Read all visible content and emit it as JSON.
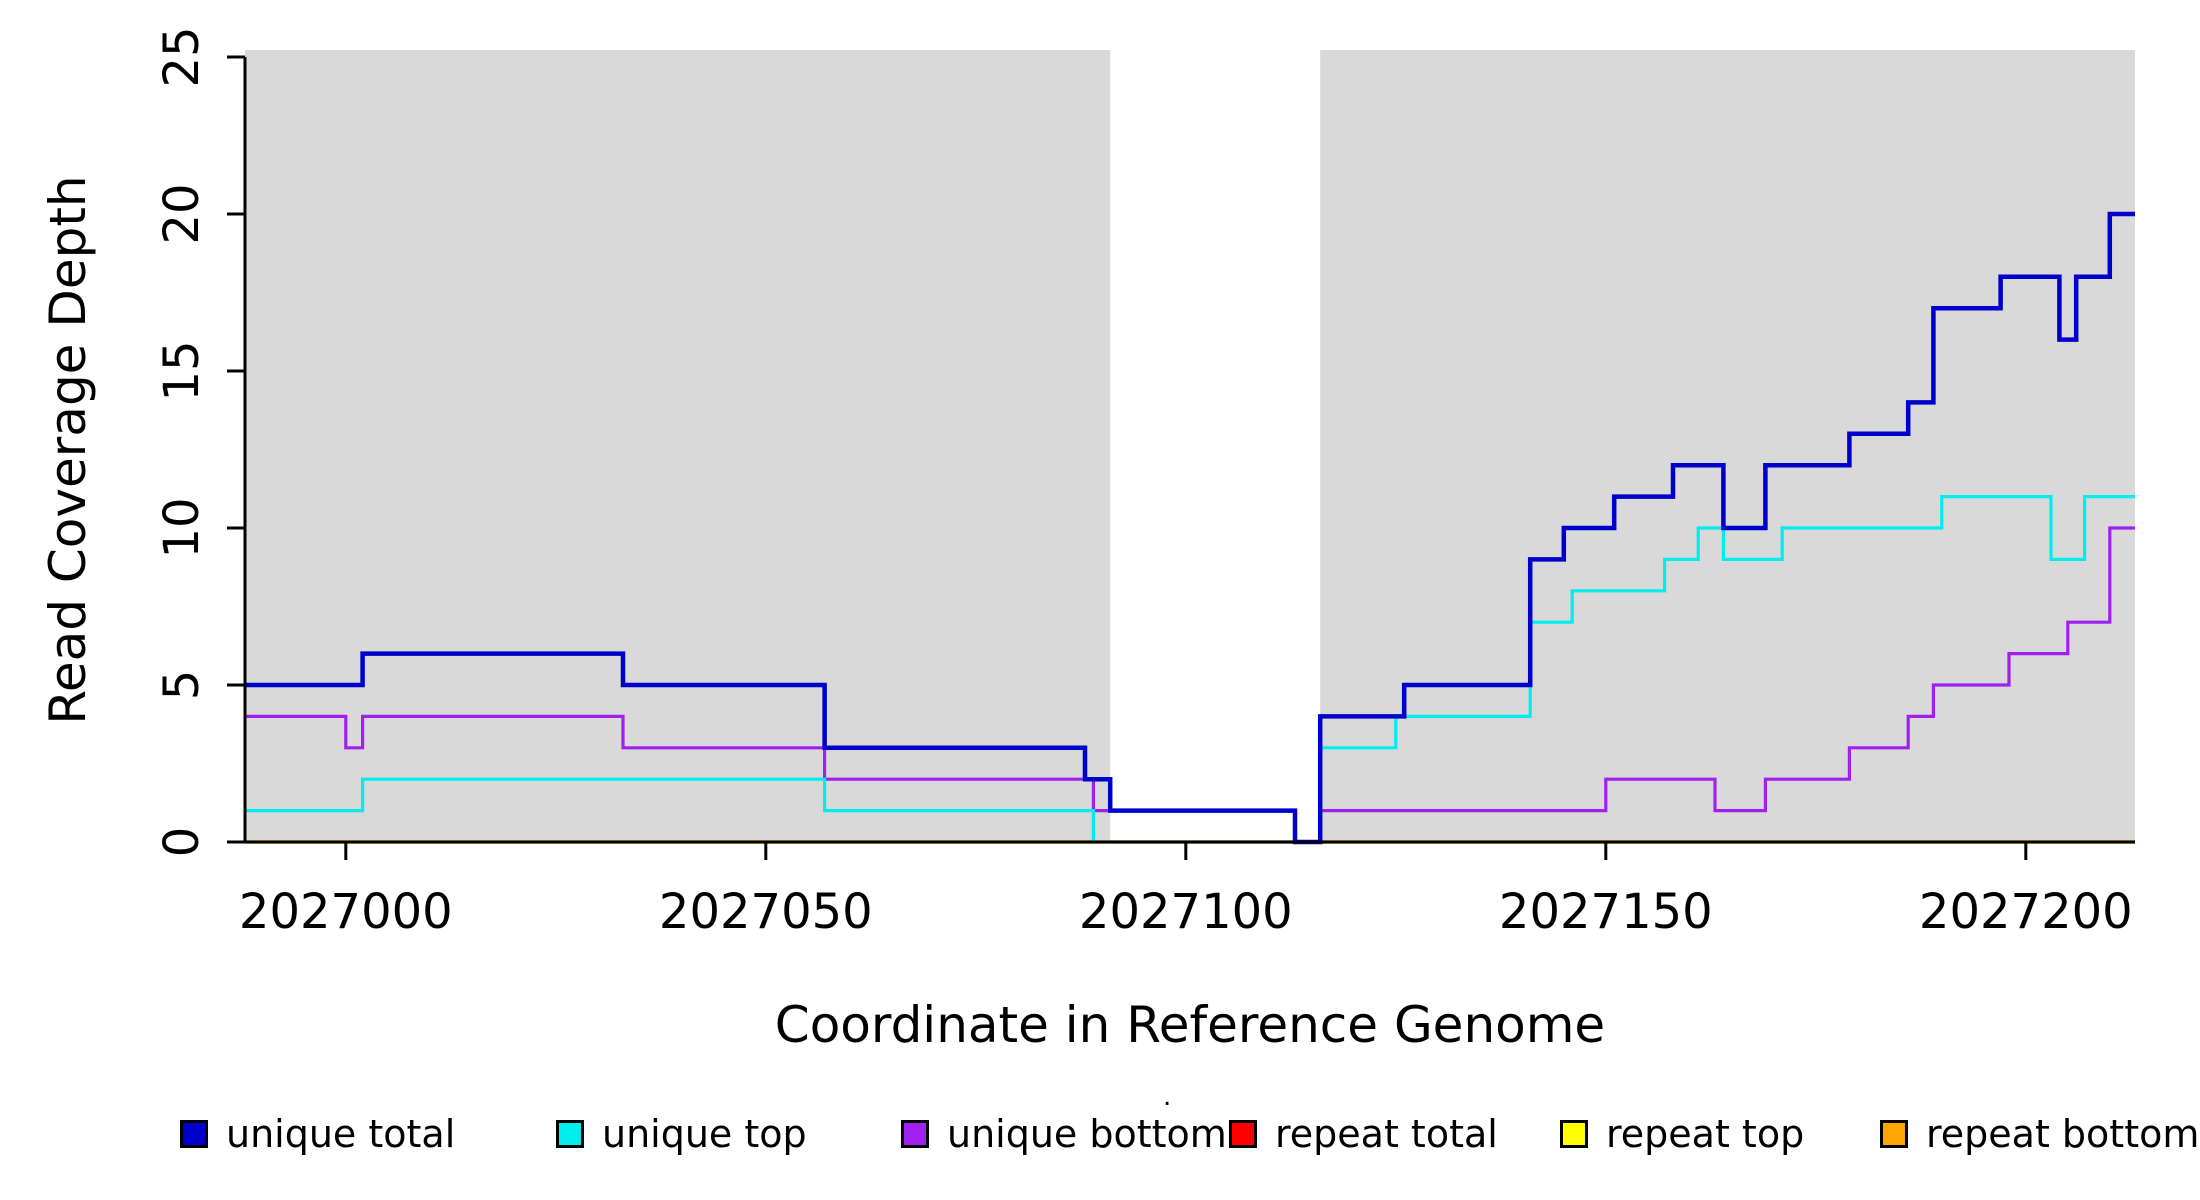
{
  "figure": {
    "background": "#ffffff",
    "stray_mark": "."
  },
  "chart_data": {
    "type": "line",
    "style": "step",
    "title": "",
    "xlabel": "Coordinate in Reference Genome",
    "ylabel": "Read Coverage Depth",
    "xlim": [
      2026988,
      2027213
    ],
    "ylim": [
      0,
      25
    ],
    "x_ticks": [
      2027000,
      2027050,
      2027100,
      2027150,
      2027200
    ],
    "y_ticks": [
      0,
      5,
      10,
      15,
      20,
      25
    ],
    "grid": false,
    "legend_position": "bottom",
    "shade_color": "#d9d9d9",
    "axis_color": "#000000",
    "shaded_regions": [
      {
        "from": 2026988,
        "to": 2027091
      },
      {
        "from": 2027116,
        "to": 2027213
      }
    ],
    "draw_order": [
      3,
      4,
      5,
      2,
      1,
      0
    ],
    "series": [
      {
        "name": "unique total",
        "color": "#0000cd",
        "points": [
          [
            2026988,
            5
          ],
          [
            2027002,
            6
          ],
          [
            2027033,
            5
          ],
          [
            2027057,
            3
          ],
          [
            2027088,
            2
          ],
          [
            2027091,
            1
          ],
          [
            2027113,
            0
          ],
          [
            2027116,
            4
          ],
          [
            2027126,
            5
          ],
          [
            2027141,
            9
          ],
          [
            2027145,
            10
          ],
          [
            2027151,
            11
          ],
          [
            2027158,
            12
          ],
          [
            2027164,
            10
          ],
          [
            2027169,
            12
          ],
          [
            2027179,
            13
          ],
          [
            2027186,
            14
          ],
          [
            2027189,
            17
          ],
          [
            2027197,
            18
          ],
          [
            2027204,
            16
          ],
          [
            2027206,
            18
          ],
          [
            2027210,
            20
          ]
        ]
      },
      {
        "name": "unique top",
        "color": "#00eeee",
        "points": [
          [
            2026988,
            1
          ],
          [
            2027002,
            2
          ],
          [
            2027057,
            1
          ],
          [
            2027089,
            0
          ],
          [
            2027116,
            3
          ],
          [
            2027125,
            4
          ],
          [
            2027141,
            7
          ],
          [
            2027146,
            8
          ],
          [
            2027157,
            9
          ],
          [
            2027161,
            10
          ],
          [
            2027164,
            9
          ],
          [
            2027171,
            10
          ],
          [
            2027190,
            11
          ],
          [
            2027203,
            9
          ],
          [
            2027207,
            11
          ]
        ]
      },
      {
        "name": "unique bottom",
        "color": "#a020f0",
        "points": [
          [
            2026988,
            4
          ],
          [
            2027000,
            3
          ],
          [
            2027002,
            4
          ],
          [
            2027033,
            3
          ],
          [
            2027057,
            2
          ],
          [
            2027089,
            1
          ],
          [
            2027113,
            0
          ],
          [
            2027116,
            1
          ],
          [
            2027150,
            2
          ],
          [
            2027163,
            1
          ],
          [
            2027169,
            2
          ],
          [
            2027179,
            3
          ],
          [
            2027186,
            4
          ],
          [
            2027189,
            5
          ],
          [
            2027198,
            6
          ],
          [
            2027205,
            7
          ],
          [
            2027210,
            10
          ]
        ]
      },
      {
        "name": "repeat total",
        "color": "#ff0000",
        "points": [
          [
            2026988,
            0
          ]
        ]
      },
      {
        "name": "repeat top",
        "color": "#ffff00",
        "points": [
          [
            2026988,
            0
          ]
        ]
      },
      {
        "name": "repeat bottom",
        "color": "#ffa500",
        "points": [
          [
            2026988,
            0
          ]
        ]
      }
    ]
  }
}
